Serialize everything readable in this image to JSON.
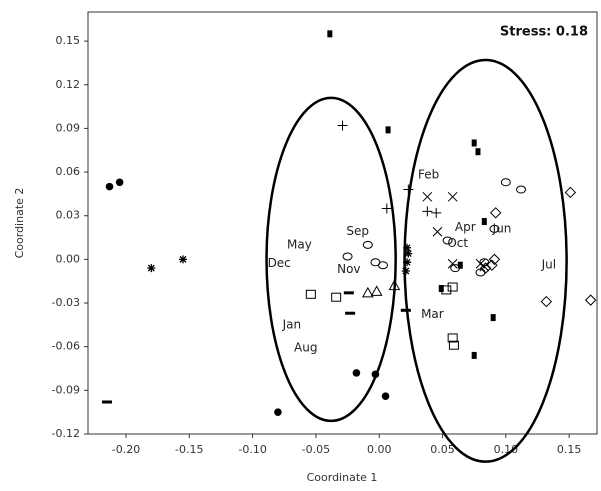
{
  "chart_data": {
    "type": "scatter",
    "stress": "Stress: 0.18",
    "x_label": "Coordinate 1",
    "y_label": "Coordinate 2",
    "xlim": [
      -0.23,
      0.172
    ],
    "ylim": [
      -0.12,
      0.17
    ],
    "xticks": [
      {
        "value": -0.2,
        "label": "-0.20"
      },
      -0.15,
      {
        "value": -0.1,
        "label": "-0.10"
      },
      -0.05,
      {
        "value": 0,
        "label": "0.00"
      },
      0.05,
      {
        "value": 0.1,
        "label": "0.10"
      },
      0.15
    ],
    "yticks": [
      -0.12,
      -0.09,
      -0.06,
      -0.03,
      {
        "value": 0,
        "label": "0.00"
      },
      0.03,
      0.06,
      0.09,
      0.12,
      0.15
    ],
    "series": [
      {
        "marker": "filled-circle",
        "color": "#000000",
        "x": [
          -0.213,
          -0.205,
          -0.08,
          -0.018,
          -0.003,
          0.005
        ],
        "y": [
          0.05,
          0.053,
          -0.105,
          -0.078,
          -0.079,
          -0.094
        ]
      },
      {
        "marker": "asterisk",
        "color": "#000000",
        "x": [
          -0.18,
          -0.155,
          0.022,
          0.022,
          0.021,
          0.023
        ],
        "y": [
          -0.006,
          0.0,
          0.008,
          -0.002,
          -0.008,
          0.004
        ]
      },
      {
        "marker": "filled-square",
        "color": "#000000",
        "x": [
          -0.039,
          0.007,
          0.075,
          0.078,
          0.083,
          0.064,
          0.049,
          0.09,
          0.075
        ],
        "y": [
          0.155,
          0.089,
          0.08,
          0.074,
          0.026,
          -0.004,
          -0.02,
          -0.04,
          -0.066
        ]
      },
      {
        "marker": "dash",
        "color": "#000000",
        "x": [
          -0.215,
          -0.024,
          -0.023,
          0.021
        ],
        "y": [
          -0.098,
          -0.023,
          -0.037,
          -0.035
        ]
      },
      {
        "marker": "open-square",
        "color": "#000000",
        "x": [
          -0.054,
          -0.034,
          0.053,
          0.058,
          0.058,
          0.059
        ],
        "y": [
          -0.024,
          -0.026,
          -0.021,
          -0.019,
          -0.054,
          -0.059
        ]
      },
      {
        "marker": "open-circle",
        "color": "#000000",
        "x": [
          -0.025,
          -0.009,
          -0.003,
          0.003,
          0.1,
          0.112,
          0.054,
          0.08,
          0.083,
          0.091,
          0.06
        ],
        "y": [
          0.002,
          0.01,
          -0.002,
          -0.004,
          0.053,
          0.048,
          0.013,
          -0.009,
          -0.002,
          0.021,
          -0.006
        ]
      },
      {
        "marker": "plus",
        "color": "#000000",
        "x": [
          -0.029,
          0.006,
          0.023,
          0.038,
          0.045
        ],
        "y": [
          0.092,
          0.035,
          0.048,
          0.033,
          0.032
        ]
      },
      {
        "marker": "cross",
        "color": "#000000",
        "x": [
          0.038,
          0.058,
          0.046,
          0.058,
          0.08,
          0.083
        ],
        "y": [
          0.043,
          0.043,
          0.019,
          -0.003,
          -0.003,
          -0.005
        ]
      },
      {
        "marker": "diamond",
        "color": "#000000",
        "x": [
          0.151,
          0.132,
          0.167,
          0.092,
          0.089,
          0.091,
          0.084
        ],
        "y": [
          0.046,
          -0.029,
          -0.028,
          0.032,
          -0.004,
          0.0,
          -0.006
        ]
      },
      {
        "marker": "triangle",
        "color": "#000000",
        "x": [
          -0.009,
          -0.002,
          0.012
        ],
        "y": [
          -0.023,
          -0.022,
          -0.018
        ]
      }
    ],
    "annotations": [
      {
        "text": "Feb",
        "x": 0.039,
        "y": 0.058
      },
      {
        "text": "May",
        "x": -0.063,
        "y": 0.01
      },
      {
        "text": "Dec",
        "x": -0.079,
        "y": -0.003
      },
      {
        "text": "Nov",
        "x": -0.024,
        "y": -0.007
      },
      {
        "text": "Sep",
        "x": -0.017,
        "y": 0.019
      },
      {
        "text": "Apr",
        "x": 0.068,
        "y": 0.022
      },
      {
        "text": "Oct",
        "x": 0.062,
        "y": 0.011
      },
      {
        "text": "Jun",
        "x": 0.097,
        "y": 0.021
      },
      {
        "text": "Jul",
        "x": 0.134,
        "y": -0.004
      },
      {
        "text": "Mar",
        "x": 0.042,
        "y": -0.038
      },
      {
        "text": "Jan",
        "x": -0.069,
        "y": -0.045
      },
      {
        "text": "Aug",
        "x": -0.058,
        "y": -0.061
      }
    ],
    "ellipses": [
      {
        "cx": -0.038,
        "cy": 0.0,
        "rx": 0.051,
        "ry": 0.111
      },
      {
        "cx": 0.084,
        "cy": -0.001,
        "rx": 0.064,
        "ry": 0.138
      }
    ]
  }
}
